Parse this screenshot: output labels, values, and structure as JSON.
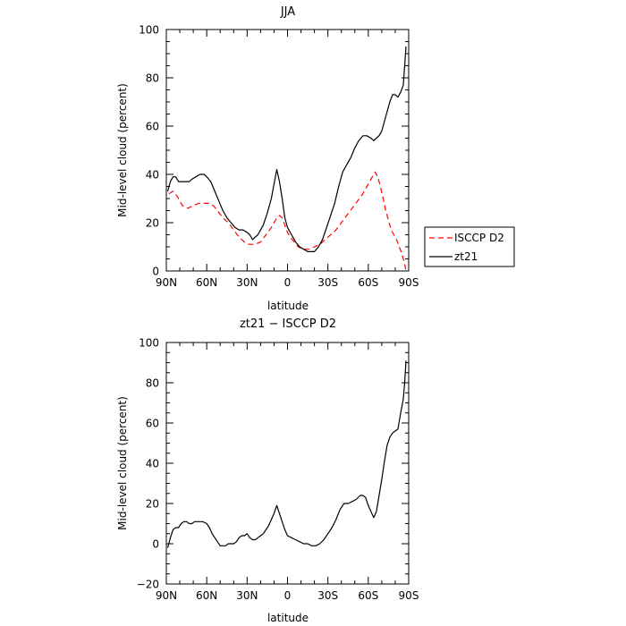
{
  "chart_data": [
    {
      "type": "line",
      "title": "JJA",
      "xlabel": "latitude",
      "ylabel": "Mid-level cloud (percent)",
      "xlim": [
        90,
        -90
      ],
      "ylim": [
        0,
        100
      ],
      "xticks": [
        {
          "v": 90,
          "label": "90N"
        },
        {
          "v": 60,
          "label": "60N"
        },
        {
          "v": 30,
          "label": "30N"
        },
        {
          "v": 0,
          "label": "0"
        },
        {
          "v": -30,
          "label": "30S"
        },
        {
          "v": -60,
          "label": "60S"
        },
        {
          "v": -90,
          "label": "90S"
        }
      ],
      "yticks": [
        0,
        20,
        40,
        60,
        80,
        100
      ],
      "grid": false,
      "legend_position": "outside-right",
      "series": [
        {
          "name": "ISCCP D2",
          "color": "#ff0000",
          "dash": "dashed",
          "points": [
            [
              88,
              32
            ],
            [
              85,
              33
            ],
            [
              82,
              31
            ],
            [
              78,
              27
            ],
            [
              74,
              26
            ],
            [
              70,
              27
            ],
            [
              66,
              28
            ],
            [
              62,
              28
            ],
            [
              58,
              28
            ],
            [
              55,
              27
            ],
            [
              52,
              25
            ],
            [
              48,
              22
            ],
            [
              44,
              20
            ],
            [
              40,
              17
            ],
            [
              36,
              14
            ],
            [
              32,
              12
            ],
            [
              28,
              11
            ],
            [
              24,
              11
            ],
            [
              20,
              12
            ],
            [
              16,
              15
            ],
            [
              12,
              18
            ],
            [
              8,
              22
            ],
            [
              6,
              23
            ],
            [
              4,
              22
            ],
            [
              2,
              19
            ],
            [
              0,
              16
            ],
            [
              -2,
              14
            ],
            [
              -5,
              12
            ],
            [
              -8,
              10
            ],
            [
              -12,
              9
            ],
            [
              -16,
              9
            ],
            [
              -20,
              10
            ],
            [
              -24,
              11
            ],
            [
              -28,
              13
            ],
            [
              -32,
              15
            ],
            [
              -36,
              17
            ],
            [
              -40,
              20
            ],
            [
              -44,
              23
            ],
            [
              -48,
              26
            ],
            [
              -52,
              29
            ],
            [
              -56,
              32
            ],
            [
              -60,
              36
            ],
            [
              -62,
              38
            ],
            [
              -64,
              40
            ],
            [
              -65,
              41
            ],
            [
              -67,
              39
            ],
            [
              -69,
              35
            ],
            [
              -71,
              30
            ],
            [
              -73,
              25
            ],
            [
              -75,
              21
            ],
            [
              -77,
              17
            ],
            [
              -79,
              15
            ],
            [
              -81,
              13
            ],
            [
              -83,
              10
            ],
            [
              -85,
              7
            ],
            [
              -87,
              3
            ],
            [
              -88,
              0
            ]
          ]
        },
        {
          "name": "zt21",
          "color": "#000000",
          "dash": "solid",
          "points": [
            [
              89,
              33
            ],
            [
              87,
              37
            ],
            [
              85,
              39
            ],
            [
              83,
              39
            ],
            [
              81,
              37
            ],
            [
              78,
              37
            ],
            [
              75,
              37
            ],
            [
              73,
              37
            ],
            [
              71,
              38
            ],
            [
              68,
              39
            ],
            [
              65,
              40
            ],
            [
              62,
              40
            ],
            [
              60,
              39
            ],
            [
              57,
              37
            ],
            [
              54,
              33
            ],
            [
              51,
              29
            ],
            [
              48,
              25
            ],
            [
              45,
              22
            ],
            [
              42,
              20
            ],
            [
              39,
              18
            ],
            [
              36,
              17
            ],
            [
              33,
              17
            ],
            [
              30,
              16
            ],
            [
              28,
              15
            ],
            [
              26,
              13
            ],
            [
              24,
              14
            ],
            [
              22,
              15
            ],
            [
              20,
              17
            ],
            [
              18,
              19
            ],
            [
              15,
              24
            ],
            [
              12,
              30
            ],
            [
              10,
              36
            ],
            [
              8,
              42
            ],
            [
              6,
              37
            ],
            [
              4,
              30
            ],
            [
              2,
              22
            ],
            [
              0,
              18
            ],
            [
              -3,
              15
            ],
            [
              -6,
              12
            ],
            [
              -9,
              10
            ],
            [
              -12,
              9
            ],
            [
              -15,
              8
            ],
            [
              -17,
              8
            ],
            [
              -20,
              8
            ],
            [
              -23,
              10
            ],
            [
              -26,
              13
            ],
            [
              -29,
              18
            ],
            [
              -32,
              23
            ],
            [
              -35,
              28
            ],
            [
              -38,
              35
            ],
            [
              -41,
              41
            ],
            [
              -44,
              44
            ],
            [
              -47,
              47
            ],
            [
              -50,
              51
            ],
            [
              -53,
              54
            ],
            [
              -56,
              56
            ],
            [
              -59,
              56
            ],
            [
              -62,
              55
            ],
            [
              -64,
              54
            ],
            [
              -66,
              55
            ],
            [
              -68,
              56
            ],
            [
              -70,
              58
            ],
            [
              -72,
              62
            ],
            [
              -74,
              66
            ],
            [
              -76,
              70
            ],
            [
              -78,
              73
            ],
            [
              -80,
              73
            ],
            [
              -82,
              72
            ],
            [
              -84,
              74
            ],
            [
              -86,
              77
            ],
            [
              -87,
              85
            ],
            [
              -88,
              93
            ]
          ]
        }
      ]
    },
    {
      "type": "line",
      "title": "zt21 − ISCCP D2",
      "xlabel": "latitude",
      "ylabel": "Mid-level cloud (percent)",
      "xlim": [
        90,
        -90
      ],
      "ylim": [
        -20,
        100
      ],
      "xticks": [
        {
          "v": 90,
          "label": "90N"
        },
        {
          "v": 60,
          "label": "60N"
        },
        {
          "v": 30,
          "label": "30N"
        },
        {
          "v": 0,
          "label": "0"
        },
        {
          "v": -30,
          "label": "30S"
        },
        {
          "v": -60,
          "label": "60S"
        },
        {
          "v": -90,
          "label": "90S"
        }
      ],
      "yticks": [
        -20,
        0,
        20,
        40,
        60,
        80,
        100
      ],
      "grid": false,
      "series": [
        {
          "color": "#000000",
          "dash": "solid",
          "points": [
            [
              89,
              -2
            ],
            [
              87,
              3
            ],
            [
              85,
              7
            ],
            [
              83,
              8
            ],
            [
              81,
              8
            ],
            [
              79,
              10
            ],
            [
              77,
              11
            ],
            [
              75,
              11
            ],
            [
              73,
              10
            ],
            [
              71,
              10
            ],
            [
              69,
              11
            ],
            [
              66,
              11
            ],
            [
              63,
              11
            ],
            [
              60,
              10
            ],
            [
              58,
              8
            ],
            [
              56,
              5
            ],
            [
              54,
              3
            ],
            [
              52,
              1
            ],
            [
              50,
              -1
            ],
            [
              48,
              -1
            ],
            [
              46,
              -1
            ],
            [
              44,
              0
            ],
            [
              42,
              0
            ],
            [
              40,
              0
            ],
            [
              38,
              1
            ],
            [
              36,
              3
            ],
            [
              34,
              4
            ],
            [
              32,
              4
            ],
            [
              30,
              5
            ],
            [
              28,
              3
            ],
            [
              26,
              2
            ],
            [
              24,
              2
            ],
            [
              22,
              3
            ],
            [
              20,
              4
            ],
            [
              18,
              5
            ],
            [
              16,
              7
            ],
            [
              14,
              9
            ],
            [
              12,
              12
            ],
            [
              10,
              15
            ],
            [
              8,
              19
            ],
            [
              6,
              15
            ],
            [
              4,
              11
            ],
            [
              2,
              7
            ],
            [
              0,
              4
            ],
            [
              -3,
              3
            ],
            [
              -6,
              2
            ],
            [
              -9,
              1
            ],
            [
              -12,
              0
            ],
            [
              -15,
              0
            ],
            [
              -18,
              -1
            ],
            [
              -21,
              -1
            ],
            [
              -24,
              0
            ],
            [
              -27,
              2
            ],
            [
              -30,
              5
            ],
            [
              -33,
              8
            ],
            [
              -36,
              12
            ],
            [
              -39,
              17
            ],
            [
              -42,
              20
            ],
            [
              -45,
              20
            ],
            [
              -48,
              21
            ],
            [
              -51,
              22
            ],
            [
              -54,
              24
            ],
            [
              -56,
              24
            ],
            [
              -58,
              23
            ],
            [
              -60,
              19
            ],
            [
              -62,
              16
            ],
            [
              -64,
              13
            ],
            [
              -66,
              16
            ],
            [
              -68,
              24
            ],
            [
              -70,
              32
            ],
            [
              -72,
              41
            ],
            [
              -74,
              49
            ],
            [
              -76,
              53
            ],
            [
              -78,
              55
            ],
            [
              -80,
              56
            ],
            [
              -82,
              57
            ],
            [
              -84,
              65
            ],
            [
              -86,
              72
            ],
            [
              -87,
              80
            ],
            [
              -88,
              91
            ]
          ]
        }
      ]
    }
  ]
}
